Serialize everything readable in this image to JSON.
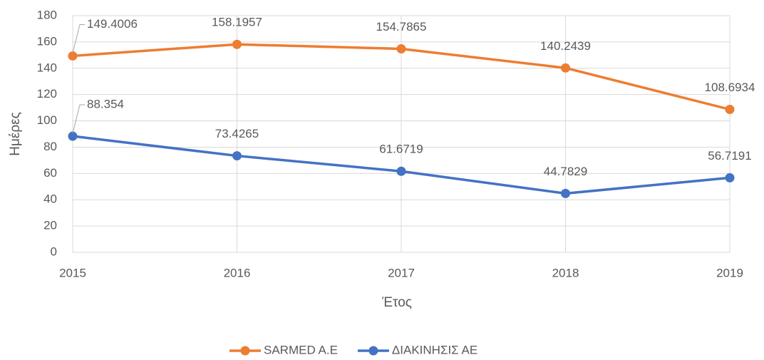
{
  "chart_data": {
    "type": "line",
    "x": [
      2015,
      2016,
      2017,
      2018,
      2019
    ],
    "xlim": [
      2015,
      2019
    ],
    "xticks": [
      2015,
      2016,
      2017,
      2018,
      2019
    ],
    "ylim": [
      0,
      180
    ],
    "yticks": [
      0,
      20,
      40,
      60,
      80,
      100,
      120,
      140,
      160,
      180
    ],
    "xlabel": "Έτος",
    "ylabel": "Ημέρες",
    "grid": true,
    "legend": "bottom",
    "series": [
      {
        "name": "SARMED A.E",
        "color": "#ED7D31",
        "values": [
          149.4006,
          158.1957,
          154.7865,
          140.2439,
          108.6934
        ]
      },
      {
        "name": "ΔΙΑΚΙΝΗΣΙΣ ΑΕ",
        "color": "#4472C4",
        "values": [
          88.354,
          73.4265,
          61.6719,
          44.7829,
          56.7191
        ]
      }
    ]
  }
}
